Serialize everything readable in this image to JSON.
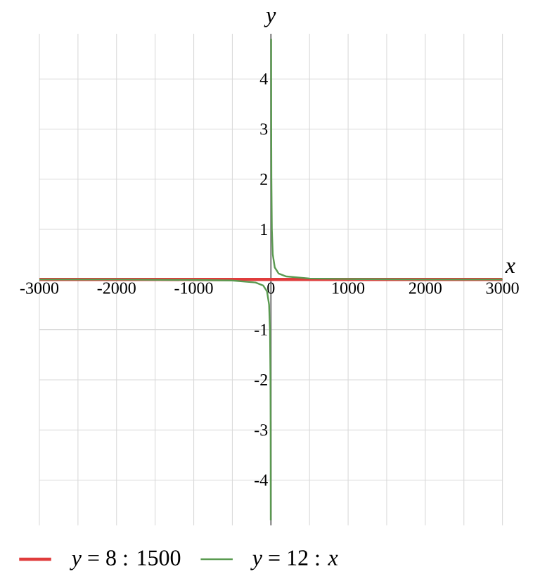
{
  "chart_data": {
    "type": "line",
    "xlabel": "x",
    "ylabel": "y",
    "xlim": [
      -3000,
      3000
    ],
    "ylim": [
      -4.9,
      4.9
    ],
    "xticks": [
      -3000,
      {
        "value": -2500,
        "label": null
      },
      -2000,
      {
        "value": -1500,
        "label": null
      },
      -1000,
      {
        "value": -500,
        "label": null
      },
      0,
      {
        "value": 500,
        "label": null
      },
      1000,
      {
        "value": 1500,
        "label": null
      },
      2000,
      {
        "value": 2500,
        "label": null
      },
      3000
    ],
    "yticks": [
      -4,
      -3,
      -2,
      -1,
      1,
      2,
      3,
      4
    ],
    "grid": true,
    "legend": "bottom left",
    "marker": "none",
    "line_style": "solid",
    "series": [
      {
        "name": "*y* = 8 : 1500",
        "color": "#e03c3c",
        "x": [
          -3000,
          3000
        ],
        "values": [
          0,
          0
        ]
      },
      {
        "name": "*y* = 12 : *x*",
        "color": "#5a9a50",
        "x": [
          -3000,
          -2000,
          -1000,
          -500,
          -200,
          -100,
          -50,
          -24,
          -12,
          -6,
          -4,
          -3,
          -2.5,
          0,
          2.5,
          3,
          4,
          6,
          12,
          24,
          50,
          100,
          200,
          500,
          1000,
          2000,
          3000
        ],
        "values": [
          0,
          0,
          -0.01,
          -0.02,
          -0.06,
          -0.12,
          -0.24,
          -0.5,
          -1,
          -2,
          -3,
          -4,
          -4.8,
          null,
          4.8,
          4,
          3,
          2,
          1,
          0.5,
          0.24,
          0.12,
          0.06,
          0.02,
          0.01,
          0,
          0
        ]
      }
    ]
  }
}
